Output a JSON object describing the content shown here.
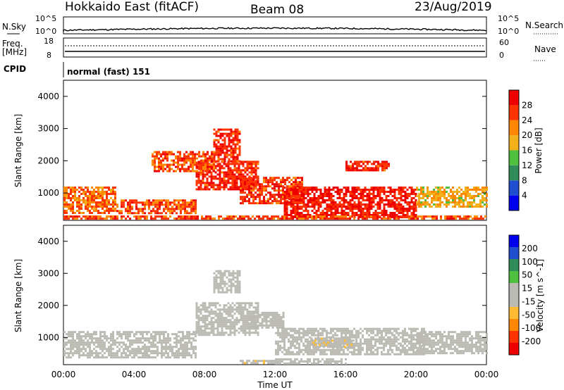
{
  "header": {
    "title": "Hokkaido East (fitACF)",
    "beam": "Beam 08",
    "date": "23/Aug/2019"
  },
  "sky_panel": {
    "left_label": "N.Sky",
    "left_ticks": [
      "10^5",
      "10^0"
    ],
    "right_ticks": [
      "10^5",
      "10^0"
    ],
    "right_label": "N.Search"
  },
  "freq_panel": {
    "left_label_top": "Freq.",
    "left_label_unit": "[MHz]",
    "left_ticks": [
      "18",
      "8"
    ],
    "right_ticks": [
      "60",
      "0"
    ],
    "right_label": "Nave"
  },
  "cpid_panel": {
    "label": "CPID",
    "program": "normal (fast) 151"
  },
  "time_axis": {
    "ticks": [
      "00:00",
      "04:00",
      "08:00",
      "12:00",
      "16:00",
      "20:00",
      "00:00"
    ],
    "label": "Time UT"
  },
  "colors": {
    "power": [
      "#0000ee",
      "#1f4fd0",
      "#2f8c59",
      "#4fbf3f",
      "#f2b11a",
      "#ff8800",
      "#ff3300",
      "#ee0000"
    ],
    "velocity": [
      "#ee0000",
      "#ff3300",
      "#ff8800",
      "#ffbb33",
      "#bbbbb3",
      "#bbbbb3",
      "#4fbf3f",
      "#2f8c59",
      "#1f4fd0",
      "#0000ee"
    ]
  },
  "chart_data": [
    {
      "type": "heatmap",
      "panel": "power",
      "ylabel": "Slant Range [km]",
      "yticks": [
        "1000",
        "2000",
        "3000",
        "4000"
      ],
      "ylim": [
        150,
        4500
      ],
      "xlim_hours": [
        0,
        24
      ],
      "colorbar": {
        "label": "Power [dB]",
        "ticks": [
          "4",
          "8",
          "12",
          "16",
          "20",
          "24",
          "28"
        ],
        "range": [
          0,
          30
        ]
      },
      "regions": [
        {
          "t0": 0.0,
          "t1": 3.0,
          "r0": 400,
          "r1": 1200,
          "value": 22
        },
        {
          "t0": 3.0,
          "t1": 7.5,
          "r0": 350,
          "r1": 800,
          "value": 24
        },
        {
          "t0": 7.5,
          "t1": 11.0,
          "r0": 1100,
          "r1": 2000,
          "value": 26
        },
        {
          "t0": 8.5,
          "t1": 10.0,
          "r0": 2000,
          "r1": 3000,
          "value": 26
        },
        {
          "t0": 10.0,
          "t1": 13.5,
          "r0": 700,
          "r1": 1500,
          "value": 25
        },
        {
          "t0": 12.5,
          "t1": 20.0,
          "r0": 250,
          "r1": 1200,
          "value": 27
        },
        {
          "t0": 5.0,
          "t1": 8.5,
          "r0": 1700,
          "r1": 2300,
          "value": 24
        },
        {
          "t0": 16.0,
          "t1": 18.5,
          "r0": 1700,
          "r1": 2000,
          "value": 26
        },
        {
          "t0": 20.0,
          "t1": 24.0,
          "r0": 600,
          "r1": 1200,
          "value": 18
        },
        {
          "t0": 0.0,
          "t1": 24.0,
          "r0": 180,
          "r1": 300,
          "value": 24
        }
      ]
    },
    {
      "type": "heatmap",
      "panel": "velocity",
      "ylabel": "Slant Range [km]",
      "yticks": [
        "1000",
        "2000",
        "3000",
        "4000"
      ],
      "ylim": [
        150,
        4500
      ],
      "xlim_hours": [
        0,
        24
      ],
      "colorbar": {
        "label": "Velocity [m s^-1]",
        "ticks": [
          "-200",
          "-100",
          "-50",
          "-15",
          "15",
          "50",
          "100",
          "200"
        ],
        "range": [
          -250,
          250
        ]
      },
      "regions": [
        {
          "t0": 0.0,
          "t1": 7.5,
          "r0": 350,
          "r1": 1200,
          "value": 0
        },
        {
          "t0": 7.5,
          "t1": 11.0,
          "r0": 1100,
          "r1": 2100,
          "value": 0
        },
        {
          "t0": 8.5,
          "t1": 10.0,
          "r0": 2400,
          "r1": 3100,
          "value": 30
        },
        {
          "t0": 10.5,
          "t1": 12.5,
          "r0": 1300,
          "r1": 1800,
          "value": 35
        },
        {
          "t0": 12.0,
          "t1": 20.5,
          "r0": 500,
          "r1": 1300,
          "value": 0
        },
        {
          "t0": 14.0,
          "t1": 16.5,
          "r0": 700,
          "r1": 1000,
          "value": -40
        },
        {
          "t0": 10.0,
          "t1": 12.0,
          "r0": 180,
          "r1": 300,
          "value": -40
        },
        {
          "t0": 12.0,
          "t1": 16.0,
          "r0": 180,
          "r1": 350,
          "value": 30
        },
        {
          "t0": 20.0,
          "t1": 24.0,
          "r0": 500,
          "r1": 1200,
          "value": 0
        }
      ]
    }
  ]
}
